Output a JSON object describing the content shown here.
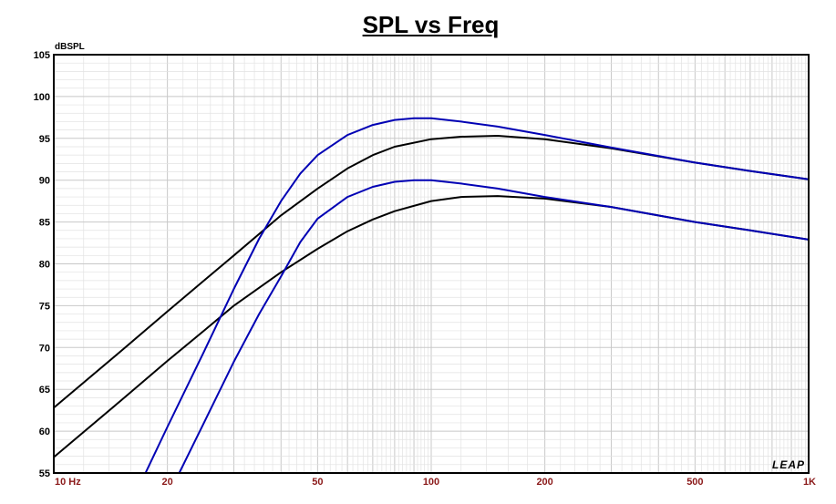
{
  "chart_data": {
    "type": "line",
    "title": "SPL vs Freq",
    "ylabel": "dBSPL",
    "xscale": "log",
    "xlim": [
      10,
      1000
    ],
    "ylim": [
      55,
      105
    ],
    "grid": true,
    "yticks": [
      "105",
      "100",
      "95",
      "90",
      "85",
      "80",
      "75",
      "70",
      "65",
      "60",
      "55"
    ],
    "ytick_values": [
      105,
      100,
      95,
      90,
      85,
      80,
      75,
      70,
      65,
      60,
      55
    ],
    "xtick_labels": [
      {
        "value": 10,
        "label": "10 Hz"
      },
      {
        "value": 20,
        "label": "20"
      },
      {
        "value": 50,
        "label": "50"
      },
      {
        "value": 100,
        "label": "100"
      },
      {
        "value": 200,
        "label": "200"
      },
      {
        "value": 500,
        "label": "500"
      },
      {
        "value": 1000,
        "label": "1K"
      }
    ],
    "logo": "LEAP",
    "colors": {
      "black": "#000000",
      "blue": "#0000b4",
      "frame": "#000000",
      "grid": "#c8c8c8",
      "xtick": "#8b1a1a"
    },
    "series": [
      {
        "color": "#000000",
        "x": [
          10,
          15,
          20,
          25,
          30,
          40,
          50,
          60,
          70,
          80,
          100,
          120,
          150,
          200,
          300,
          500,
          700,
          1000
        ],
        "y": [
          62.8,
          69.5,
          74.3,
          78,
          81,
          85.8,
          89,
          91.4,
          93,
          94,
          94.9,
          95.2,
          95.3,
          94.9,
          93.8,
          92.1,
          91.1,
          90.1
        ]
      },
      {
        "color": "#000000",
        "x": [
          10,
          15,
          20,
          25,
          30,
          40,
          50,
          60,
          70,
          80,
          100,
          120,
          150,
          200,
          300,
          500,
          700,
          1000
        ],
        "y": [
          56.9,
          63.6,
          68.4,
          72,
          75,
          79,
          81.8,
          83.9,
          85.3,
          86.3,
          87.5,
          88,
          88.1,
          87.8,
          86.8,
          85,
          84,
          82.9
        ]
      },
      {
        "color": "#0000b4",
        "x": [
          17.5,
          20,
          25,
          30,
          35,
          40,
          45,
          50,
          60,
          70,
          80,
          90,
          100,
          120,
          150,
          200,
          300,
          500,
          700,
          1000
        ],
        "y": [
          55,
          60.5,
          69.5,
          77,
          83,
          87.5,
          90.8,
          93,
          95.4,
          96.6,
          97.2,
          97.4,
          97.4,
          97,
          96.4,
          95.4,
          93.9,
          92.1,
          91.1,
          90.1
        ]
      },
      {
        "color": "#0000b4",
        "x": [
          21.5,
          25,
          30,
          35,
          40,
          45,
          50,
          60,
          70,
          80,
          90,
          100,
          120,
          150,
          200,
          300,
          500,
          700,
          1000
        ],
        "y": [
          55,
          61,
          68.3,
          74,
          78.5,
          82.6,
          85.4,
          88,
          89.2,
          89.8,
          90,
          90,
          89.6,
          89,
          88,
          86.8,
          85,
          84,
          82.9
        ]
      }
    ]
  }
}
